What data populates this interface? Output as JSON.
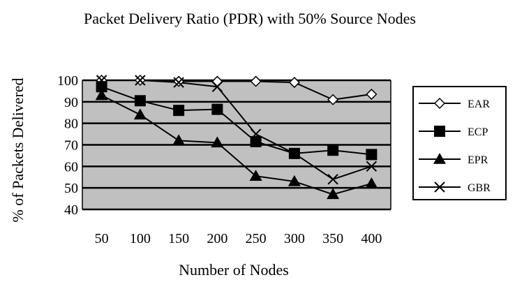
{
  "chart_data": {
    "type": "line",
    "title": "Packet Delivery Ratio (PDR) with 50% Source Nodes",
    "xlabel": "Number of Nodes",
    "ylabel": "% of Packets  Delivered",
    "categories": [
      "50",
      "100",
      "150",
      "200",
      "250",
      "300",
      "350",
      "400"
    ],
    "ylim": [
      40,
      100
    ],
    "yticks": [
      "40",
      "50",
      "60",
      "70",
      "80",
      "90",
      "100"
    ],
    "grid": true,
    "legend_position": "right",
    "plot_background": "#c0c0c0",
    "series": [
      {
        "name": "EAR",
        "marker": "diamond",
        "values": [
          100,
          100,
          99.5,
          99.5,
          99.5,
          99,
          91,
          93.5
        ]
      },
      {
        "name": "ECP",
        "marker": "square",
        "values": [
          97,
          90.5,
          86,
          86.5,
          71.5,
          66,
          67.5,
          65.5
        ]
      },
      {
        "name": "EPR",
        "marker": "triangle",
        "values": [
          93,
          84,
          72,
          71,
          55.5,
          53,
          47,
          52
        ]
      },
      {
        "name": "GBR",
        "marker": "x",
        "values": [
          100,
          100,
          99,
          97,
          75,
          66,
          54,
          60
        ]
      }
    ]
  }
}
